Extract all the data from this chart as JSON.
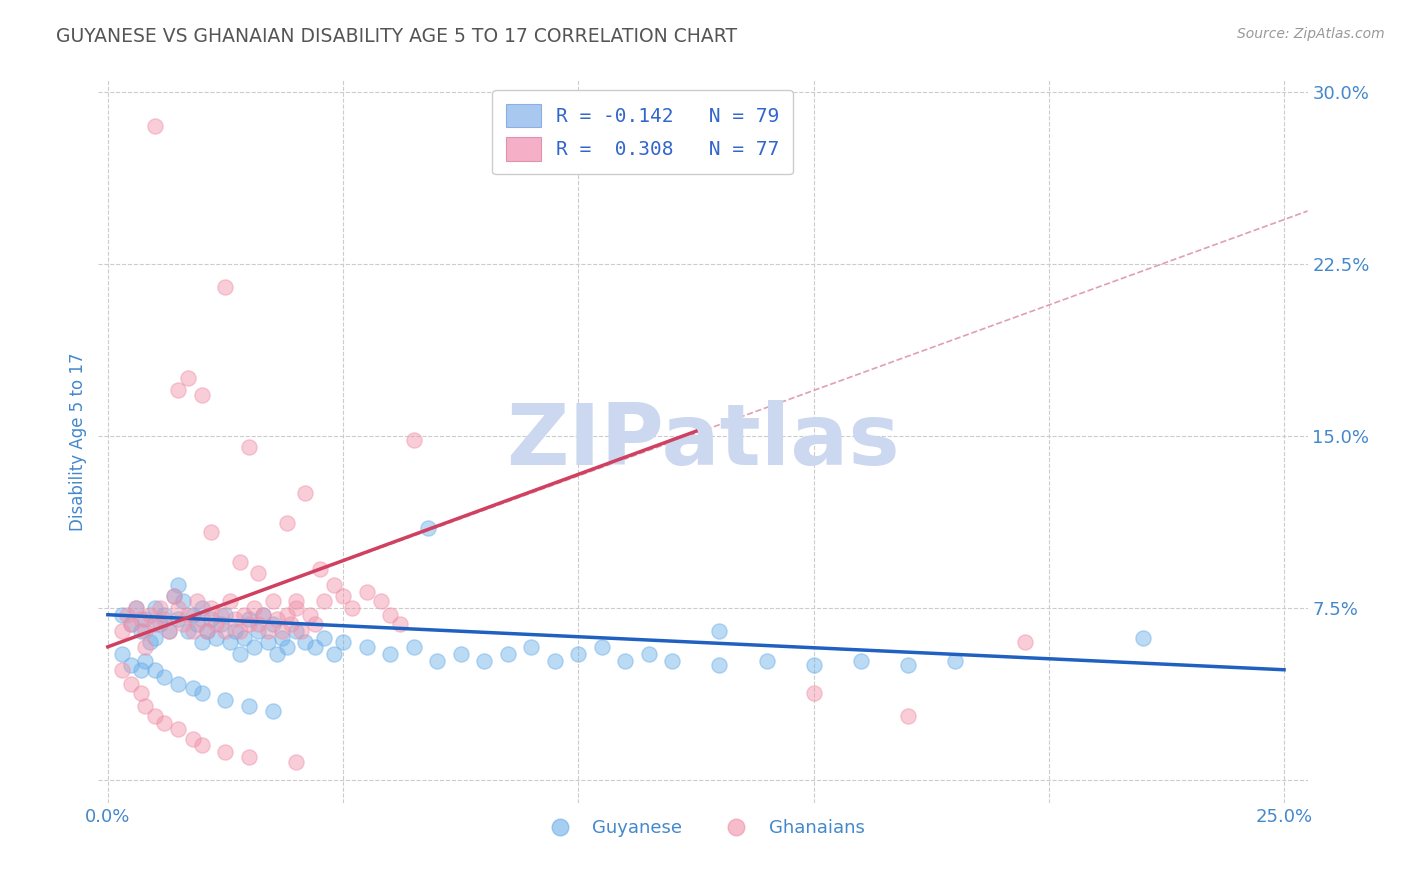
{
  "title": "GUYANESE VS GHANAIAN DISABILITY AGE 5 TO 17 CORRELATION CHART",
  "source_text": "Source: ZipAtlas.com",
  "ylabel": "Disability Age 5 to 17",
  "xlim": [
    -0.002,
    0.255
  ],
  "ylim": [
    -0.01,
    0.305
  ],
  "xticks": [
    0.0,
    0.05,
    0.1,
    0.15,
    0.2,
    0.25
  ],
  "yticks": [
    0.0,
    0.075,
    0.15,
    0.225,
    0.3
  ],
  "xtick_labels": [
    "0.0%",
    "",
    "",
    "",
    "",
    "25.0%"
  ],
  "ytick_labels": [
    "",
    "7.5%",
    "15.0%",
    "22.5%",
    "30.0%"
  ],
  "legend_r_label1": "R = -0.142   N = 79",
  "legend_r_label2": "R =  0.308   N = 77",
  "legend_color1": "#a8c8f0",
  "legend_color2": "#f5b0c8",
  "guyanese_color": "#6aaee8",
  "ghanaian_color": "#f090a8",
  "trend_guyanese_color": "#2060c0",
  "trend_ghanaian_color": "#d04060",
  "trend_dashed_color": "#e0a0b0",
  "background_color": "#ffffff",
  "grid_color": "#cccccc",
  "watermark_text": "ZIPatlas",
  "watermark_color": "#ccd8f0",
  "tick_label_color": "#4488cc",
  "ylabel_color": "#4488cc",
  "title_color": "#555555",
  "source_color": "#999999",
  "legend_text_color": "#3366cc",
  "bottom_legend_color": "#4488cc",
  "guyanese_points": [
    [
      0.003,
      0.072
    ],
    [
      0.005,
      0.068
    ],
    [
      0.006,
      0.075
    ],
    [
      0.007,
      0.065
    ],
    [
      0.008,
      0.07
    ],
    [
      0.009,
      0.06
    ],
    [
      0.01,
      0.075
    ],
    [
      0.01,
      0.062
    ],
    [
      0.011,
      0.068
    ],
    [
      0.012,
      0.072
    ],
    [
      0.013,
      0.065
    ],
    [
      0.014,
      0.08
    ],
    [
      0.015,
      0.085
    ],
    [
      0.015,
      0.07
    ],
    [
      0.016,
      0.078
    ],
    [
      0.017,
      0.065
    ],
    [
      0.018,
      0.072
    ],
    [
      0.019,
      0.068
    ],
    [
      0.02,
      0.075
    ],
    [
      0.02,
      0.06
    ],
    [
      0.021,
      0.065
    ],
    [
      0.022,
      0.07
    ],
    [
      0.023,
      0.062
    ],
    [
      0.024,
      0.068
    ],
    [
      0.025,
      0.072
    ],
    [
      0.026,
      0.06
    ],
    [
      0.027,
      0.065
    ],
    [
      0.028,
      0.055
    ],
    [
      0.029,
      0.062
    ],
    [
      0.03,
      0.07
    ],
    [
      0.031,
      0.058
    ],
    [
      0.032,
      0.065
    ],
    [
      0.033,
      0.072
    ],
    [
      0.034,
      0.06
    ],
    [
      0.035,
      0.068
    ],
    [
      0.036,
      0.055
    ],
    [
      0.037,
      0.062
    ],
    [
      0.038,
      0.058
    ],
    [
      0.04,
      0.065
    ],
    [
      0.042,
      0.06
    ],
    [
      0.044,
      0.058
    ],
    [
      0.046,
      0.062
    ],
    [
      0.048,
      0.055
    ],
    [
      0.05,
      0.06
    ],
    [
      0.055,
      0.058
    ],
    [
      0.06,
      0.055
    ],
    [
      0.065,
      0.058
    ],
    [
      0.07,
      0.052
    ],
    [
      0.075,
      0.055
    ],
    [
      0.08,
      0.052
    ],
    [
      0.085,
      0.055
    ],
    [
      0.09,
      0.058
    ],
    [
      0.095,
      0.052
    ],
    [
      0.1,
      0.055
    ],
    [
      0.105,
      0.058
    ],
    [
      0.11,
      0.052
    ],
    [
      0.115,
      0.055
    ],
    [
      0.12,
      0.052
    ],
    [
      0.13,
      0.05
    ],
    [
      0.14,
      0.052
    ],
    [
      0.15,
      0.05
    ],
    [
      0.16,
      0.052
    ],
    [
      0.17,
      0.05
    ],
    [
      0.18,
      0.052
    ],
    [
      0.003,
      0.055
    ],
    [
      0.005,
      0.05
    ],
    [
      0.007,
      0.048
    ],
    [
      0.008,
      0.052
    ],
    [
      0.01,
      0.048
    ],
    [
      0.012,
      0.045
    ],
    [
      0.015,
      0.042
    ],
    [
      0.018,
      0.04
    ],
    [
      0.02,
      0.038
    ],
    [
      0.025,
      0.035
    ],
    [
      0.03,
      0.032
    ],
    [
      0.035,
      0.03
    ],
    [
      0.068,
      0.11
    ],
    [
      0.13,
      0.065
    ],
    [
      0.22,
      0.062
    ]
  ],
  "ghanaian_points": [
    [
      0.003,
      0.065
    ],
    [
      0.004,
      0.072
    ],
    [
      0.005,
      0.068
    ],
    [
      0.006,
      0.075
    ],
    [
      0.007,
      0.07
    ],
    [
      0.008,
      0.065
    ],
    [
      0.008,
      0.058
    ],
    [
      0.009,
      0.072
    ],
    [
      0.01,
      0.068
    ],
    [
      0.01,
      0.285
    ],
    [
      0.011,
      0.075
    ],
    [
      0.012,
      0.07
    ],
    [
      0.013,
      0.065
    ],
    [
      0.014,
      0.08
    ],
    [
      0.015,
      0.075
    ],
    [
      0.015,
      0.17
    ],
    [
      0.016,
      0.068
    ],
    [
      0.017,
      0.072
    ],
    [
      0.017,
      0.175
    ],
    [
      0.018,
      0.065
    ],
    [
      0.019,
      0.078
    ],
    [
      0.02,
      0.07
    ],
    [
      0.02,
      0.168
    ],
    [
      0.021,
      0.065
    ],
    [
      0.022,
      0.075
    ],
    [
      0.022,
      0.108
    ],
    [
      0.023,
      0.068
    ],
    [
      0.024,
      0.072
    ],
    [
      0.025,
      0.065
    ],
    [
      0.025,
      0.215
    ],
    [
      0.026,
      0.078
    ],
    [
      0.027,
      0.07
    ],
    [
      0.028,
      0.065
    ],
    [
      0.028,
      0.095
    ],
    [
      0.029,
      0.072
    ],
    [
      0.03,
      0.068
    ],
    [
      0.03,
      0.145
    ],
    [
      0.031,
      0.075
    ],
    [
      0.032,
      0.068
    ],
    [
      0.032,
      0.09
    ],
    [
      0.033,
      0.072
    ],
    [
      0.034,
      0.065
    ],
    [
      0.035,
      0.078
    ],
    [
      0.036,
      0.07
    ],
    [
      0.037,
      0.065
    ],
    [
      0.038,
      0.072
    ],
    [
      0.038,
      0.112
    ],
    [
      0.039,
      0.068
    ],
    [
      0.04,
      0.075
    ],
    [
      0.04,
      0.078
    ],
    [
      0.041,
      0.065
    ],
    [
      0.042,
      0.125
    ],
    [
      0.043,
      0.072
    ],
    [
      0.044,
      0.068
    ],
    [
      0.045,
      0.092
    ],
    [
      0.046,
      0.078
    ],
    [
      0.048,
      0.085
    ],
    [
      0.05,
      0.08
    ],
    [
      0.052,
      0.075
    ],
    [
      0.055,
      0.082
    ],
    [
      0.058,
      0.078
    ],
    [
      0.06,
      0.072
    ],
    [
      0.062,
      0.068
    ],
    [
      0.065,
      0.148
    ],
    [
      0.003,
      0.048
    ],
    [
      0.005,
      0.042
    ],
    [
      0.007,
      0.038
    ],
    [
      0.008,
      0.032
    ],
    [
      0.01,
      0.028
    ],
    [
      0.012,
      0.025
    ],
    [
      0.015,
      0.022
    ],
    [
      0.018,
      0.018
    ],
    [
      0.02,
      0.015
    ],
    [
      0.025,
      0.012
    ],
    [
      0.03,
      0.01
    ],
    [
      0.04,
      0.008
    ],
    [
      0.15,
      0.038
    ],
    [
      0.17,
      0.028
    ],
    [
      0.195,
      0.06
    ]
  ],
  "trend_guyanese": {
    "x_start": 0.0,
    "y_start": 0.072,
    "x_end": 0.25,
    "y_end": 0.048
  },
  "trend_ghanaian": {
    "x_start": 0.0,
    "y_start": 0.058,
    "x_end": 0.125,
    "y_end": 0.152
  },
  "trend_dashed": {
    "x_start": 0.0,
    "y_start": 0.058,
    "x_end": 0.255,
    "y_end": 0.248
  }
}
